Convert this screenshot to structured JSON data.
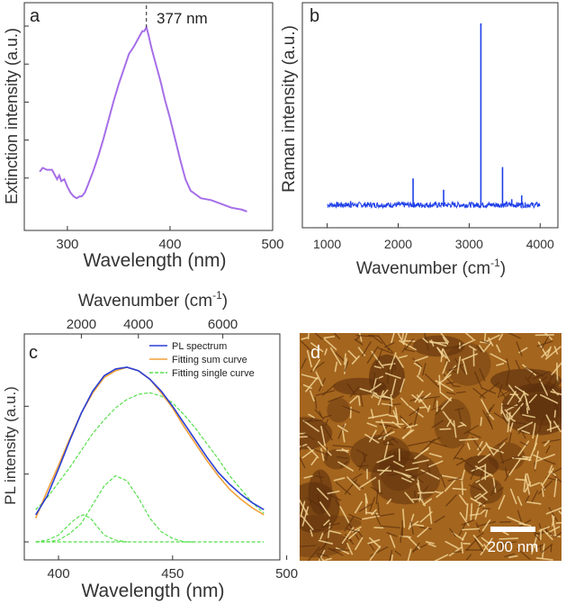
{
  "chart_data": [
    {
      "panel_label": "a",
      "type": "line",
      "xlabel": "Wavelength (nm)",
      "ylabel": "Extinction intensity (a.u.)",
      "xlim": [
        258,
        500
      ],
      "ylim": [
        0,
        1.0
      ],
      "xticks": [
        300,
        400,
        500
      ],
      "annotation": "377 nm",
      "annotation_x": 377,
      "color": "#a66ee8",
      "series": [
        {
          "x": [
            273,
            276,
            280,
            285,
            290,
            292,
            294,
            297,
            300,
            303,
            306,
            309,
            312,
            314,
            317,
            320,
            325,
            330,
            335,
            340,
            345,
            350,
            355,
            360,
            365,
            370,
            373,
            375,
            377,
            379,
            382,
            385,
            388,
            391,
            395,
            400,
            405,
            410,
            415,
            420,
            430,
            440,
            450,
            460,
            470,
            475
          ],
          "y": [
            0.21,
            0.23,
            0.22,
            0.22,
            0.17,
            0.19,
            0.16,
            0.17,
            0.13,
            0.1,
            0.08,
            0.07,
            0.08,
            0.08,
            0.1,
            0.14,
            0.21,
            0.29,
            0.38,
            0.48,
            0.58,
            0.67,
            0.75,
            0.83,
            0.87,
            0.92,
            0.95,
            0.95,
            0.97,
            0.93,
            0.86,
            0.8,
            0.74,
            0.68,
            0.59,
            0.49,
            0.38,
            0.27,
            0.17,
            0.11,
            0.07,
            0.06,
            0.04,
            0.02,
            0.01,
            0.0
          ]
        }
      ]
    },
    {
      "panel_label": "b",
      "type": "line",
      "xlabel": "Wavenumber (cm",
      "xlabel_sup": "-1",
      "xlabel_end": ")",
      "ylabel": "Raman intensity (a.u.)",
      "xlim": [
        650,
        4250
      ],
      "ylim": [
        0,
        1.0
      ],
      "xticks": [
        1000,
        2000,
        3000,
        4000
      ],
      "color": "#1f3fe8",
      "baseline": 0.04,
      "peaks": [
        {
          "x": 1330,
          "y": 0.06
        },
        {
          "x": 2210,
          "y": 0.18
        },
        {
          "x": 2640,
          "y": 0.12
        },
        {
          "x": 3165,
          "y": 1.0
        },
        {
          "x": 3470,
          "y": 0.24
        },
        {
          "x": 3600,
          "y": 0.07
        },
        {
          "x": 3740,
          "y": 0.09
        }
      ]
    },
    {
      "panel_label": "c",
      "type": "line",
      "xlabel": "Wavelength (nm)",
      "top_xlabel": "Wavenumber (cm",
      "top_xlabel_sup": "-1",
      "top_xlabel_end": ")",
      "ylabel": "PL intensity (a.u.)",
      "xlim": [
        385,
        497
      ],
      "ylim": [
        -0.03,
        1.2
      ],
      "xticks": [
        400,
        450,
        500
      ],
      "top_ticks": [
        {
          "label": "2000",
          "at_x": 410
        },
        {
          "label": "4000",
          "at_x": 435
        },
        {
          "label": "6000",
          "at_x": 472
        }
      ],
      "legend_position": "top-right",
      "series": [
        {
          "name": "PL spectrum",
          "color": "#2a3fd6",
          "x": [
            390,
            395,
            400,
            405,
            410,
            415,
            420,
            425,
            430,
            435,
            440,
            445,
            450,
            455,
            460,
            465,
            470,
            475,
            480,
            485,
            490
          ],
          "y": [
            0.16,
            0.27,
            0.43,
            0.6,
            0.76,
            0.89,
            0.98,
            1.02,
            1.03,
            1.01,
            0.96,
            0.89,
            0.8,
            0.7,
            0.6,
            0.5,
            0.41,
            0.34,
            0.28,
            0.23,
            0.19
          ]
        },
        {
          "name": "Fitting sum curve",
          "color": "#f2a13a",
          "x": [
            390,
            395,
            400,
            405,
            410,
            415,
            420,
            425,
            430,
            435,
            440,
            445,
            450,
            455,
            460,
            465,
            470,
            475,
            480,
            485,
            490
          ],
          "y": [
            0.14,
            0.3,
            0.45,
            0.61,
            0.76,
            0.88,
            0.97,
            1.01,
            1.03,
            1.01,
            0.96,
            0.88,
            0.79,
            0.68,
            0.58,
            0.48,
            0.39,
            0.31,
            0.25,
            0.2,
            0.16
          ]
        },
        {
          "name": "Fitting single curve",
          "color": "#55e04a",
          "dashed": true,
          "x": [
            390,
            395,
            400,
            405,
            410,
            415,
            420,
            425,
            430,
            435,
            440,
            445,
            450,
            455,
            460,
            465,
            470,
            475,
            480,
            485,
            490
          ],
          "y": [
            0.19,
            0.26,
            0.35,
            0.44,
            0.54,
            0.64,
            0.72,
            0.79,
            0.84,
            0.87,
            0.88,
            0.86,
            0.82,
            0.75,
            0.67,
            0.58,
            0.49,
            0.39,
            0.31,
            0.23,
            0.17
          ]
        },
        {
          "name": "",
          "color": "#55e04a",
          "dashed": true,
          "x": [
            390,
            395,
            400,
            405,
            410,
            415,
            420,
            425,
            430,
            435,
            440,
            445,
            450,
            455,
            460
          ],
          "y": [
            0.0,
            0.0,
            0.01,
            0.05,
            0.11,
            0.22,
            0.33,
            0.39,
            0.36,
            0.26,
            0.14,
            0.06,
            0.02,
            0.0,
            0.0
          ]
        },
        {
          "name": "",
          "color": "#55e04a",
          "dashed": true,
          "x": [
            390,
            395,
            400,
            403,
            406,
            409,
            411,
            414,
            417,
            420,
            425,
            430
          ],
          "y": [
            0.0,
            0.01,
            0.04,
            0.08,
            0.12,
            0.15,
            0.16,
            0.14,
            0.09,
            0.04,
            0.01,
            0.0
          ]
        }
      ]
    }
  ],
  "afm": {
    "panel_label": "d",
    "scale_bar_label": "200 nm",
    "colors": {
      "dark": "#5a2e0c",
      "mid": "#a4651e",
      "light": "#f1d494"
    }
  }
}
